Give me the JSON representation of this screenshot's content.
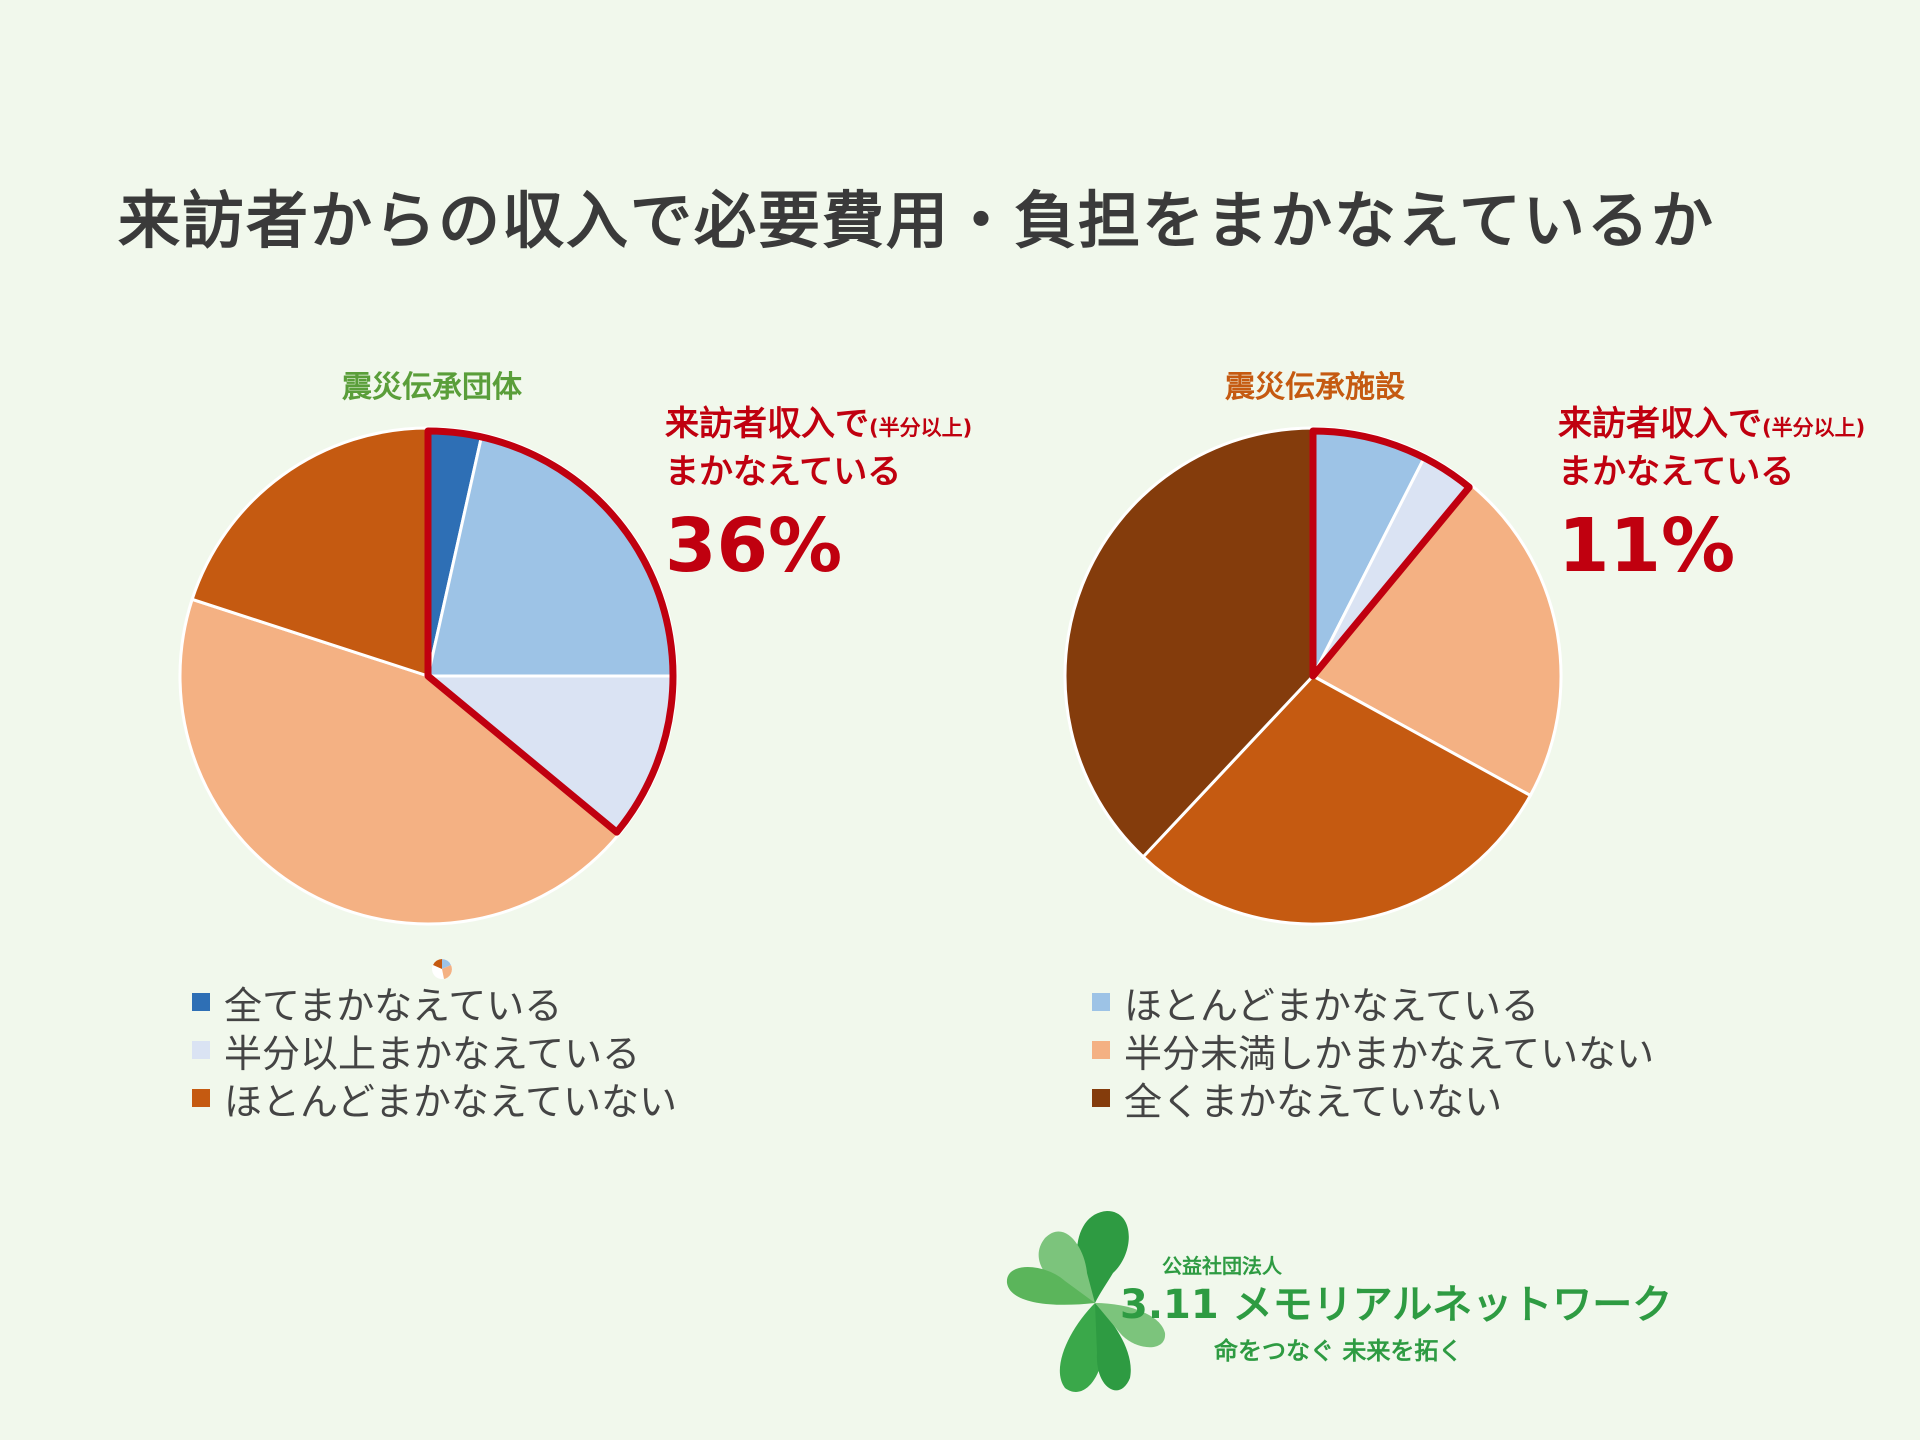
{
  "title": "来訪者からの収入で必要費用・負担をまかなえているか",
  "callout": {
    "line1": "来訪者収入で",
    "note": "(半分以上)",
    "line2": "まかなえている"
  },
  "legend": [
    {
      "label": "全てまかなえている",
      "color": "#2e6fb5"
    },
    {
      "label": "ほとんどまかなえている",
      "color": "#9dc3e6"
    },
    {
      "label": "半分以上まかなえている",
      "color": "#dae3f3"
    },
    {
      "label": "半分未満しかまかなえていない",
      "color": "#f4b183"
    },
    {
      "label": "ほとんどまかなえていない",
      "color": "#c55a11"
    },
    {
      "label": "全くまかなえていない",
      "color": "#843c0c"
    }
  ],
  "colors": {
    "highlight": "#c0000f",
    "left_title": "#5a9e3a",
    "right_title": "#c55a11",
    "logo_green": "#2e9b42"
  },
  "chart_data": [
    {
      "type": "pie",
      "title": "震災伝承団体",
      "highlight_label": "36%",
      "categories": [
        "全てまかなえている",
        "ほとんどまかなえている",
        "半分以上まかなえている",
        "半分未満しかまかなえていない",
        "ほとんどまかなえていない",
        "全くまかなえていない"
      ],
      "values": [
        3.5,
        21.5,
        11,
        44,
        20,
        0
      ],
      "highlighted": [
        "全てまかなえている",
        "ほとんどまかなえている",
        "半分以上まかなえている"
      ]
    },
    {
      "type": "pie",
      "title": "震災伝承施設",
      "highlight_label": "11%",
      "categories": [
        "全てまかなえている",
        "ほとんどまかなえている",
        "半分以上まかなえている",
        "半分未満しかまかなえていない",
        "ほとんどまかなえていない",
        "全くまかなえていない"
      ],
      "values": [
        0,
        7.5,
        3.5,
        22,
        29,
        38
      ],
      "highlighted": [
        "全てまかなえている",
        "ほとんどまかなえている",
        "半分以上まかなえている"
      ]
    }
  ],
  "logo": {
    "org": "公益社団法人",
    "name": "3.11 メモリアルネットワーク",
    "slogan": "命をつなぐ 未来を拓く"
  }
}
